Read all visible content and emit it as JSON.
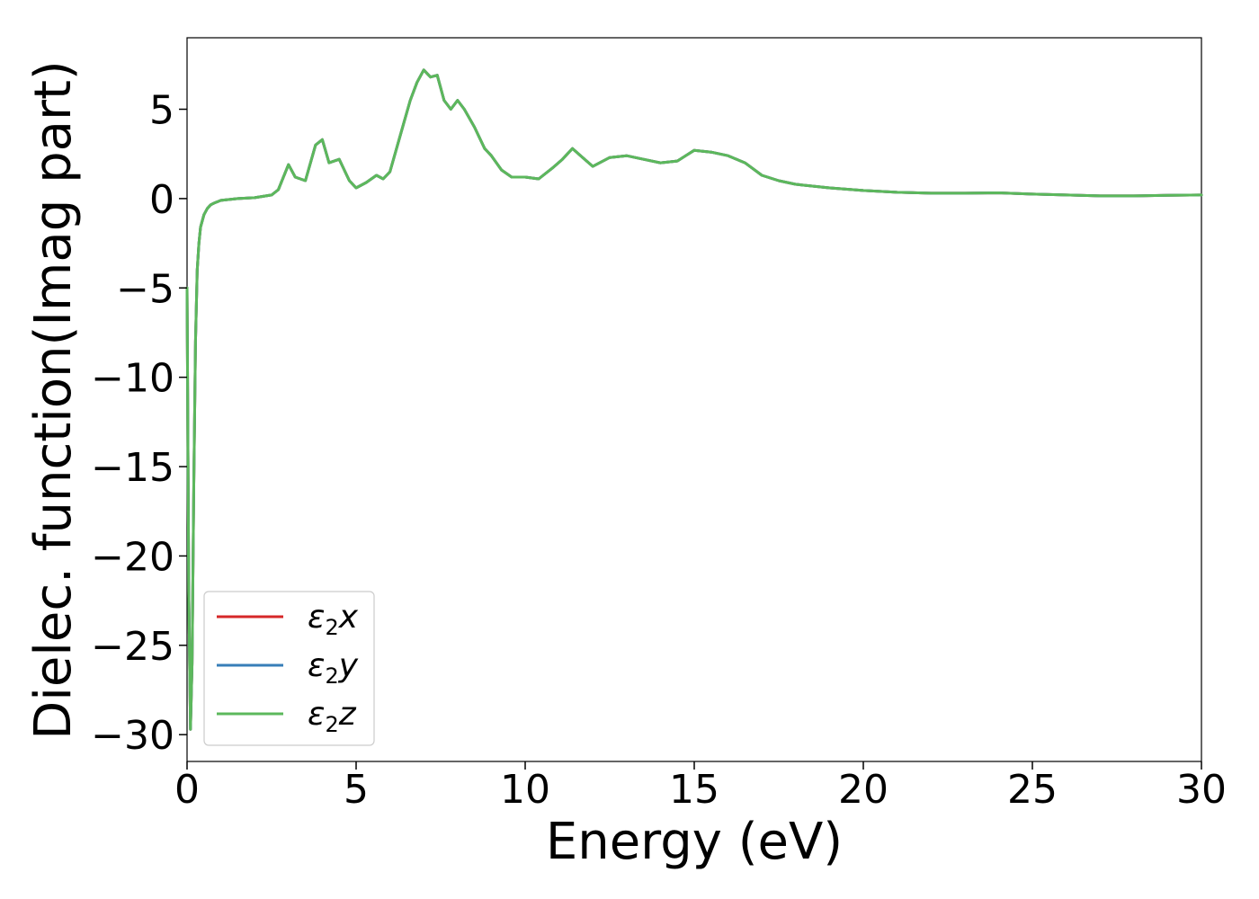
{
  "chart_data": {
    "type": "line",
    "title": "",
    "xlabel": "Energy (eV)",
    "ylabel": "Dielec. function(Imag part)",
    "xlim": [
      0,
      30
    ],
    "ylim": [
      -31.5,
      9
    ],
    "xticks": [
      0,
      5,
      10,
      15,
      20,
      25,
      30
    ],
    "xtick_labels": [
      "0",
      "5",
      "10",
      "15",
      "20",
      "25",
      "30"
    ],
    "yticks": [
      5,
      0,
      -5,
      -10,
      -15,
      -20,
      -25,
      -30
    ],
    "ytick_labels": [
      "5",
      "0",
      "−5",
      "−10",
      "−15",
      "−20",
      "−25",
      "−30"
    ],
    "grid": false,
    "legend_position": "lower-left",
    "x": [
      0.0,
      0.05,
      0.1,
      0.15,
      0.2,
      0.25,
      0.3,
      0.35,
      0.4,
      0.5,
      0.6,
      0.7,
      0.8,
      1.0,
      1.5,
      2.0,
      2.5,
      2.7,
      3.0,
      3.2,
      3.5,
      3.8,
      4.0,
      4.2,
      4.5,
      4.8,
      5.0,
      5.3,
      5.6,
      5.8,
      6.0,
      6.3,
      6.6,
      6.8,
      7.0,
      7.2,
      7.4,
      7.6,
      7.8,
      8.0,
      8.2,
      8.5,
      8.8,
      9.0,
      9.3,
      9.6,
      10.0,
      10.4,
      10.8,
      11.1,
      11.4,
      11.7,
      12.0,
      12.5,
      13.0,
      13.5,
      14.0,
      14.5,
      15.0,
      15.5,
      16.0,
      16.5,
      17.0,
      17.5,
      18.0,
      19.0,
      20.0,
      21.0,
      22.0,
      23.0,
      24.0,
      25.0,
      26.0,
      27.0,
      28.0,
      29.0,
      30.0
    ],
    "series": [
      {
        "name": "ε₂x",
        "color": "#d62728",
        "values": [
          -5,
          -22,
          -29.7,
          -26,
          -16,
          -8,
          -4,
          -2.5,
          -1.6,
          -0.9,
          -0.55,
          -0.35,
          -0.25,
          -0.1,
          0.0,
          0.05,
          0.2,
          0.5,
          1.9,
          1.2,
          1.0,
          3.0,
          3.3,
          2.0,
          2.2,
          1.0,
          0.6,
          0.9,
          1.3,
          1.1,
          1.5,
          3.5,
          5.5,
          6.5,
          7.2,
          6.8,
          6.9,
          5.5,
          5.0,
          5.5,
          5.0,
          4.0,
          2.8,
          2.4,
          1.6,
          1.2,
          1.2,
          1.1,
          1.7,
          2.2,
          2.8,
          2.3,
          1.8,
          2.3,
          2.4,
          2.2,
          2.0,
          2.1,
          2.7,
          2.6,
          2.4,
          2.0,
          1.3,
          1.0,
          0.8,
          0.6,
          0.45,
          0.35,
          0.3,
          0.3,
          0.32,
          0.25,
          0.2,
          0.15,
          0.15,
          0.18,
          0.2
        ]
      },
      {
        "name": "ε₂y",
        "color": "#377eb8",
        "values": [
          -5,
          -22,
          -29.7,
          -26,
          -16,
          -8,
          -4,
          -2.5,
          -1.6,
          -0.9,
          -0.55,
          -0.35,
          -0.25,
          -0.1,
          0.0,
          0.05,
          0.2,
          0.5,
          1.9,
          1.2,
          1.0,
          3.0,
          3.3,
          2.0,
          2.2,
          1.0,
          0.6,
          0.9,
          1.3,
          1.1,
          1.5,
          3.5,
          5.5,
          6.5,
          7.2,
          6.8,
          6.9,
          5.5,
          5.0,
          5.5,
          5.0,
          4.0,
          2.8,
          2.4,
          1.6,
          1.2,
          1.2,
          1.1,
          1.7,
          2.2,
          2.8,
          2.3,
          1.8,
          2.3,
          2.4,
          2.2,
          2.0,
          2.1,
          2.7,
          2.6,
          2.4,
          2.0,
          1.3,
          1.0,
          0.8,
          0.6,
          0.45,
          0.35,
          0.3,
          0.3,
          0.32,
          0.25,
          0.2,
          0.15,
          0.15,
          0.18,
          0.2
        ]
      },
      {
        "name": "ε₂z",
        "color": "#5cb85c",
        "values": [
          -5,
          -22,
          -29.7,
          -26,
          -16,
          -8,
          -4,
          -2.5,
          -1.6,
          -0.9,
          -0.55,
          -0.35,
          -0.25,
          -0.1,
          0.0,
          0.05,
          0.2,
          0.5,
          1.9,
          1.2,
          1.0,
          3.0,
          3.3,
          2.0,
          2.2,
          1.0,
          0.6,
          0.9,
          1.3,
          1.1,
          1.5,
          3.5,
          5.5,
          6.5,
          7.2,
          6.8,
          6.9,
          5.5,
          5.0,
          5.5,
          5.0,
          4.0,
          2.8,
          2.4,
          1.6,
          1.2,
          1.2,
          1.1,
          1.7,
          2.2,
          2.8,
          2.3,
          1.8,
          2.3,
          2.4,
          2.2,
          2.0,
          2.1,
          2.7,
          2.6,
          2.4,
          2.0,
          1.3,
          1.0,
          0.8,
          0.6,
          0.45,
          0.35,
          0.3,
          0.3,
          0.32,
          0.25,
          0.2,
          0.15,
          0.15,
          0.18,
          0.2
        ]
      }
    ],
    "legend": [
      {
        "base": "ε",
        "sub": "2",
        "axis": "x"
      },
      {
        "base": "ε",
        "sub": "2",
        "axis": "y"
      },
      {
        "base": "ε",
        "sub": "2",
        "axis": "z"
      }
    ]
  }
}
